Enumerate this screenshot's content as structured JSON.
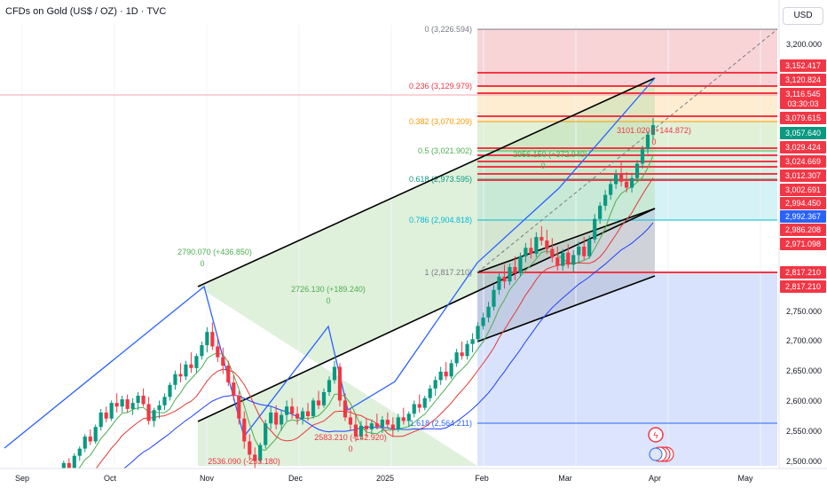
{
  "header": {
    "symbol": "CFDs on Gold (US$ / OZ) · 1D · TVC",
    "currency": "USD"
  },
  "colors": {
    "up": "#089981",
    "down": "#f23645",
    "price_line": "#f23645",
    "channel": "#000000",
    "swing": "#2962ff",
    "ma_fast": "#4caf50",
    "ma_mid": "#e53935",
    "ma_slow": "#1e40ff"
  },
  "chart_data": {
    "type": "candlestick",
    "x_labels": [
      "Sep",
      "Oct",
      "Nov",
      "Dec",
      "2025",
      "Feb",
      "Mar",
      "Apr",
      "May"
    ],
    "y_ticks": [
      "3,200.000",
      "2,750.000",
      "2,700.000",
      "2,650.000",
      "2,600.000",
      "2,550.000",
      "2,500.000"
    ],
    "ylim": [
      2490,
      3250
    ],
    "price_tags": [
      {
        "label": "3,152.417",
        "color": "#f23645"
      },
      {
        "label": "3,120.824",
        "color": "#f23645"
      },
      {
        "label": "3,116.545",
        "color": "#f23645",
        "sub": "03:30:03"
      },
      {
        "label": "3,079.615",
        "color": "#f23645"
      },
      {
        "label": "3,057.640",
        "color": "#089981"
      },
      {
        "label": "3,029.424",
        "color": "#f23645"
      },
      {
        "label": "3,024.669",
        "color": "#f23645"
      },
      {
        "label": "3,012.307",
        "color": "#f23645"
      },
      {
        "label": "3,002.691",
        "color": "#f23645"
      },
      {
        "label": "2,994.450",
        "color": "#f23645"
      },
      {
        "label": "2,992.367",
        "color": "#2962ff"
      },
      {
        "label": "2,986.208",
        "color": "#f23645"
      },
      {
        "label": "2,971.098",
        "color": "#f23645"
      },
      {
        "label": "2,817.210",
        "color": "#f23645"
      },
      {
        "label": "2,817.210",
        "color": "#f23645"
      }
    ],
    "fib_levels": [
      {
        "label": "0 (3,226.594)",
        "color": "#787b86"
      },
      {
        "label": "0.236 (3,129.979)",
        "color": "#f23645"
      },
      {
        "label": "0.382 (3,070.209)",
        "color": "#ff9800"
      },
      {
        "label": "0.5 (3,021.902)",
        "color": "#4caf50"
      },
      {
        "label": "0.618 (2,973.595)",
        "color": "#089981"
      },
      {
        "label": "0.786 (2,904.818)",
        "color": "#00bcd4"
      },
      {
        "label": "1 (2,817.210)",
        "color": "#787b86"
      },
      {
        "label": "1.618 (2,564.211)",
        "color": "#2962ff"
      }
    ],
    "annotations": [
      {
        "text": "2790.070 (+436.850)",
        "color": "#4caf50"
      },
      {
        "text": "0",
        "color": "#4caf50"
      },
      {
        "text": "2726.130 (+189.240)",
        "color": "#4caf50"
      },
      {
        "text": "0",
        "color": "#4caf50"
      },
      {
        "text": "2583.210 (-142.920)",
        "color": "#f23645"
      },
      {
        "text": "0",
        "color": "#f23645"
      },
      {
        "text": "2536.090 (-253.180)",
        "color": "#f23645"
      },
      {
        "text": "2956.150 (+372.940)",
        "color": "#4caf50"
      },
      {
        "text": "0",
        "color": "#4caf50"
      },
      {
        "text": "3101.020 (+144.872)",
        "color": "#f23645"
      },
      {
        "text": "0",
        "color": "#f23645"
      }
    ],
    "candles": [
      [
        2500,
        2505,
        2496,
        2502
      ],
      [
        2502,
        2510,
        2498,
        2506
      ],
      [
        2506,
        2508,
        2494,
        2498
      ],
      [
        2498,
        2504,
        2490,
        2502
      ],
      [
        2502,
        2512,
        2500,
        2508
      ],
      [
        2508,
        2514,
        2500,
        2504
      ],
      [
        2504,
        2512,
        2498,
        2510
      ],
      [
        2510,
        2530,
        2506,
        2526
      ],
      [
        2526,
        2532,
        2510,
        2514
      ],
      [
        2514,
        2524,
        2508,
        2520
      ],
      [
        2520,
        2540,
        2514,
        2536
      ],
      [
        2536,
        2560,
        2530,
        2556
      ],
      [
        2556,
        2564,
        2540,
        2548
      ],
      [
        2548,
        2572,
        2544,
        2568
      ],
      [
        2568,
        2584,
        2560,
        2580
      ],
      [
        2580,
        2604,
        2574,
        2600
      ],
      [
        2600,
        2612,
        2586,
        2592
      ],
      [
        2592,
        2620,
        2588,
        2616
      ],
      [
        2616,
        2646,
        2610,
        2640
      ],
      [
        2640,
        2650,
        2624,
        2630
      ],
      [
        2630,
        2660,
        2626,
        2656
      ],
      [
        2656,
        2672,
        2640,
        2650
      ],
      [
        2650,
        2668,
        2640,
        2662
      ],
      [
        2662,
        2670,
        2640,
        2646
      ],
      [
        2646,
        2664,
        2636,
        2656
      ],
      [
        2656,
        2674,
        2644,
        2668
      ],
      [
        2668,
        2680,
        2650,
        2654
      ],
      [
        2654,
        2666,
        2620,
        2626
      ],
      [
        2626,
        2648,
        2616,
        2644
      ],
      [
        2644,
        2660,
        2630,
        2652
      ],
      [
        2652,
        2672,
        2644,
        2666
      ],
      [
        2666,
        2690,
        2660,
        2686
      ],
      [
        2686,
        2710,
        2678,
        2704
      ],
      [
        2704,
        2722,
        2690,
        2700
      ],
      [
        2700,
        2726,
        2694,
        2720
      ],
      [
        2720,
        2740,
        2706,
        2714
      ],
      [
        2714,
        2738,
        2706,
        2734
      ],
      [
        2734,
        2758,
        2728,
        2752
      ],
      [
        2752,
        2782,
        2740,
        2774
      ],
      [
        2774,
        2790,
        2744,
        2750
      ],
      [
        2750,
        2764,
        2724,
        2732
      ],
      [
        2732,
        2748,
        2704,
        2718
      ],
      [
        2718,
        2726,
        2684,
        2690
      ],
      [
        2690,
        2702,
        2660,
        2668
      ],
      [
        2668,
        2676,
        2620,
        2630
      ],
      [
        2630,
        2642,
        2580,
        2592
      ],
      [
        2592,
        2604,
        2560,
        2570
      ],
      [
        2570,
        2582,
        2536,
        2560
      ],
      [
        2560,
        2590,
        2556,
        2586
      ],
      [
        2586,
        2628,
        2580,
        2622
      ],
      [
        2622,
        2650,
        2612,
        2640
      ],
      [
        2640,
        2652,
        2612,
        2620
      ],
      [
        2620,
        2644,
        2610,
        2636
      ],
      [
        2636,
        2660,
        2626,
        2650
      ],
      [
        2650,
        2664,
        2630,
        2638
      ],
      [
        2638,
        2650,
        2620,
        2630
      ],
      [
        2630,
        2648,
        2620,
        2642
      ],
      [
        2642,
        2656,
        2626,
        2634
      ],
      [
        2634,
        2664,
        2630,
        2660
      ],
      [
        2660,
        2676,
        2646,
        2652
      ],
      [
        2652,
        2680,
        2648,
        2674
      ],
      [
        2674,
        2700,
        2668,
        2694
      ],
      [
        2694,
        2726,
        2688,
        2716
      ],
      [
        2716,
        2722,
        2650,
        2660
      ],
      [
        2660,
        2672,
        2626,
        2632
      ],
      [
        2632,
        2648,
        2610,
        2620
      ],
      [
        2620,
        2636,
        2592,
        2600
      ],
      [
        2600,
        2626,
        2594,
        2618
      ],
      [
        2618,
        2630,
        2600,
        2612
      ],
      [
        2612,
        2628,
        2604,
        2622
      ],
      [
        2622,
        2638,
        2612,
        2616
      ],
      [
        2616,
        2634,
        2606,
        2628
      ],
      [
        2628,
        2640,
        2614,
        2620
      ],
      [
        2620,
        2632,
        2600,
        2612
      ],
      [
        2612,
        2638,
        2608,
        2632
      ],
      [
        2632,
        2648,
        2620,
        2626
      ],
      [
        2626,
        2642,
        2616,
        2638
      ],
      [
        2638,
        2660,
        2632,
        2654
      ],
      [
        2654,
        2670,
        2640,
        2648
      ],
      [
        2648,
        2668,
        2644,
        2664
      ],
      [
        2664,
        2686,
        2658,
        2680
      ],
      [
        2680,
        2700,
        2668,
        2694
      ],
      [
        2694,
        2716,
        2686,
        2708
      ],
      [
        2708,
        2724,
        2694,
        2700
      ],
      [
        2700,
        2728,
        2696,
        2722
      ],
      [
        2722,
        2746,
        2716,
        2740
      ],
      [
        2740,
        2758,
        2728,
        2734
      ],
      [
        2734,
        2760,
        2728,
        2754
      ],
      [
        2754,
        2772,
        2740,
        2762
      ],
      [
        2762,
        2790,
        2758,
        2784
      ],
      [
        2784,
        2806,
        2778,
        2798
      ],
      [
        2798,
        2824,
        2790,
        2816
      ],
      [
        2816,
        2852,
        2810,
        2844
      ],
      [
        2844,
        2872,
        2836,
        2866
      ],
      [
        2866,
        2886,
        2846,
        2858
      ],
      [
        2858,
        2888,
        2852,
        2882
      ],
      [
        2882,
        2900,
        2860,
        2872
      ],
      [
        2872,
        2906,
        2866,
        2900
      ],
      [
        2900,
        2922,
        2890,
        2914
      ],
      [
        2914,
        2930,
        2896,
        2904
      ],
      [
        2904,
        2940,
        2898,
        2932
      ],
      [
        2932,
        2950,
        2918,
        2926
      ],
      [
        2926,
        2944,
        2904,
        2912
      ],
      [
        2912,
        2930,
        2890,
        2898
      ],
      [
        2898,
        2916,
        2876,
        2884
      ],
      [
        2884,
        2912,
        2876,
        2906
      ],
      [
        2906,
        2920,
        2880,
        2886
      ],
      [
        2886,
        2910,
        2874,
        2902
      ],
      [
        2902,
        2924,
        2888,
        2916
      ],
      [
        2916,
        2932,
        2894,
        2900
      ],
      [
        2900,
        2934,
        2896,
        2928
      ],
      [
        2928,
        2970,
        2922,
        2962
      ],
      [
        2962,
        2990,
        2954,
        2984
      ],
      [
        2984,
        3010,
        2976,
        3002
      ],
      [
        3002,
        3028,
        2994,
        3020
      ],
      [
        3020,
        3044,
        3012,
        3036
      ],
      [
        3036,
        3056,
        3016,
        3024
      ],
      [
        3024,
        3040,
        3006,
        3014
      ],
      [
        3014,
        3036,
        3006,
        3030
      ],
      [
        3030,
        3060,
        3024,
        3054
      ],
      [
        3054,
        3084,
        3046,
        3078
      ],
      [
        3078,
        3108,
        3070,
        3102
      ],
      [
        3102,
        3130,
        3094,
        3118
      ]
    ]
  }
}
